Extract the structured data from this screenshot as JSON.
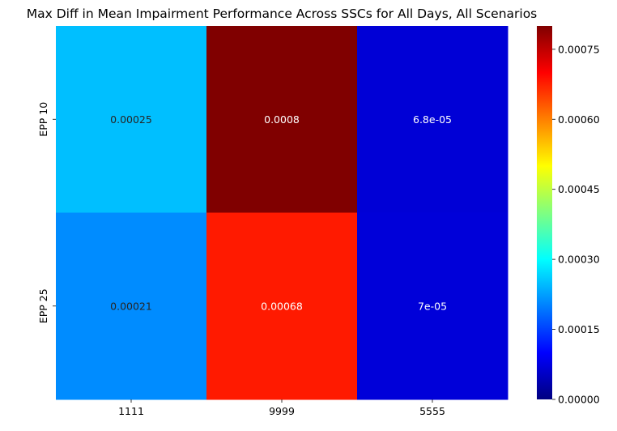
{
  "chart_data": {
    "type": "heatmap",
    "title": "Max Diff in Mean Impairment Performance Across SSCs for All Days, All Scenarios",
    "xlabel": "",
    "ylabel": "",
    "x_categories": [
      "1111",
      "9999",
      "5555"
    ],
    "y_categories": [
      "EPP 10",
      "EPP 25"
    ],
    "values": [
      [
        0.00025,
        0.0008,
        6.8e-05
      ],
      [
        0.00021,
        0.00068,
        7e-05
      ]
    ],
    "cell_labels": [
      [
        "0.00025",
        "0.0008",
        "6.8e-05"
      ],
      [
        "0.00021",
        "0.00068",
        "7e-05"
      ]
    ],
    "colorbar": {
      "colormap": "jet",
      "range": [
        0,
        0.0008
      ],
      "ticks": [
        0,
        0.00015,
        0.0003,
        0.00045,
        0.0006,
        0.00075
      ],
      "tick_labels": [
        "0.00000",
        "0.00015",
        "0.00030",
        "0.00045",
        "0.00060",
        "0.00075"
      ]
    },
    "grid": false,
    "legend_position": "right"
  }
}
